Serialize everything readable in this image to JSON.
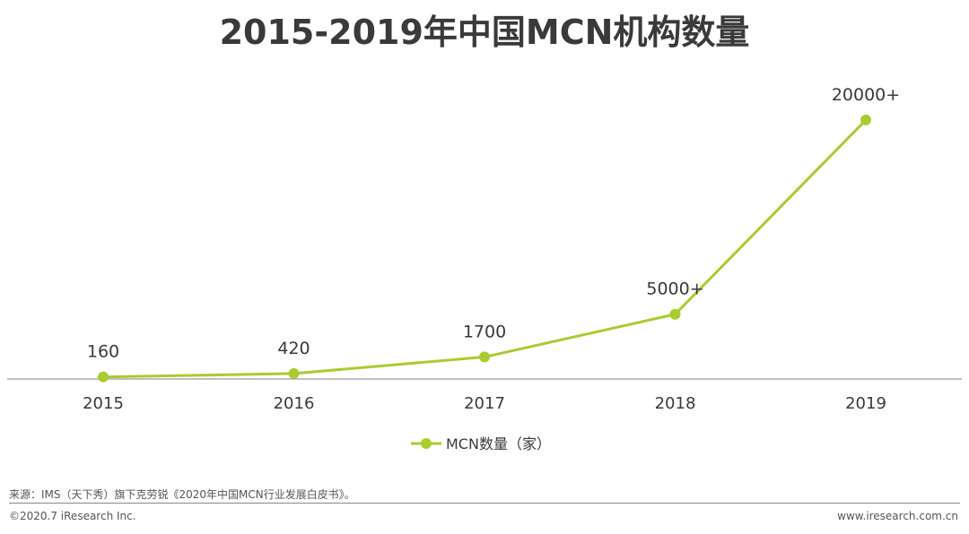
{
  "title": "2015-2019年中国MCN机构数量",
  "source_note": "来源：IMS（天下秀）旗下克劳锐《2020年中国MCN行业发展白皮书》。",
  "copyright": "©2020.7 iResearch Inc.",
  "website": "www.iresearch.com.cn",
  "colors": {
    "series": "#a9cc2e",
    "axis": "#9a9a9a",
    "text": "#3a3a3a"
  },
  "chart_data": {
    "type": "line",
    "title": "2015-2019年中国MCN机构数量",
    "xlabel": "",
    "ylabel": "",
    "categories": [
      "2015",
      "2016",
      "2017",
      "2018",
      "2019"
    ],
    "series": [
      {
        "name": "MCN数量（家）",
        "values": [
          160,
          420,
          1700,
          5000,
          20000
        ],
        "data_labels": [
          "160",
          "420",
          "1700",
          "5000+",
          "20000+"
        ]
      }
    ],
    "ylim": [
      0,
      22000
    ],
    "grid": false,
    "y_axis_visible": false,
    "legend": "bottom-center"
  }
}
